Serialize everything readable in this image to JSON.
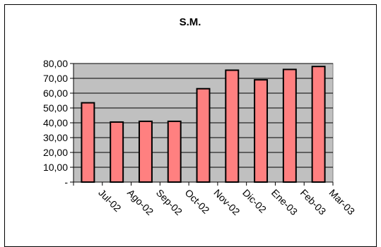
{
  "chart_data": {
    "type": "bar",
    "title": "S.M.",
    "xlabel": "",
    "ylabel": "",
    "categories": [
      "Jul-02",
      "Ago-02",
      "Sep-02",
      "Oct-02",
      "Nov-02",
      "Dic-02",
      "Ene-03",
      "Feb-03",
      "Mar-03"
    ],
    "values": [
      53.5,
      40.5,
      41.0,
      41.0,
      63.0,
      75.5,
      69.0,
      76.0,
      78.0
    ],
    "ylim": [
      0,
      80
    ],
    "yticks": [
      0,
      10,
      20,
      30,
      40,
      50,
      60,
      70,
      80
    ],
    "ytick_labels": [
      "-",
      "10,00",
      "20,00",
      "30,00",
      "40,00",
      "50,00",
      "60,00",
      "70,00",
      "80,00"
    ],
    "grid": true,
    "legend": "none",
    "colors": {
      "bar_fill": "#ff8080",
      "bar_stroke": "#000000",
      "plot_background": "#c0c0c0",
      "gridline": "#000000"
    }
  }
}
